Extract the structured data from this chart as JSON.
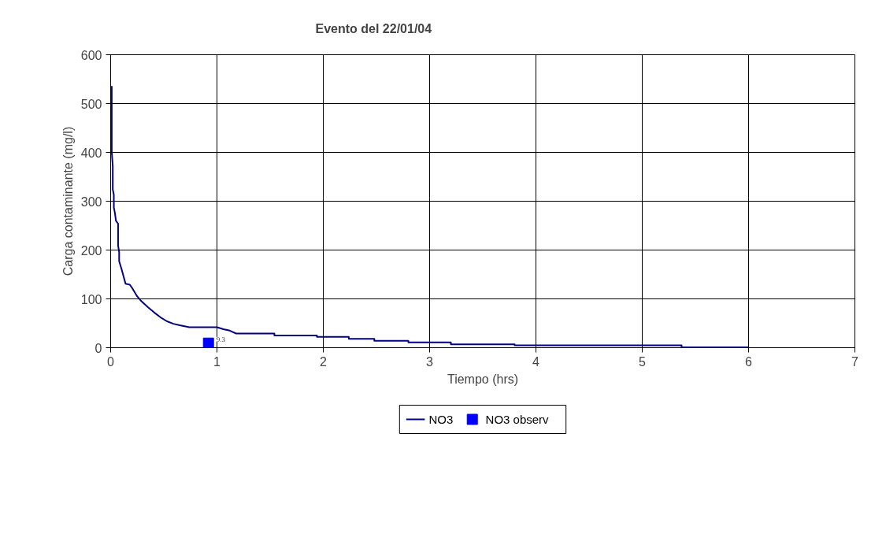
{
  "chart_data": {
    "type": "line",
    "title": "Evento del 22/01/04",
    "xlabel": "Tiempo (hrs)",
    "ylabel": "Carga contaminante (mg/l)",
    "xlim": [
      0,
      7
    ],
    "xticks": [
      0,
      1,
      2,
      3,
      4,
      5,
      6,
      7
    ],
    "ylim": [
      0,
      600
    ],
    "yticks": [
      0,
      100,
      200,
      300,
      400,
      500,
      600
    ],
    "grid": true,
    "legend": "bottom",
    "series": [
      {
        "name": "NO3",
        "color": "#000080",
        "marker": "none",
        "x": [
          0.01,
          0.01,
          0.02,
          0.02,
          0.03,
          0.03,
          0.04,
          0.05,
          0.07,
          0.07,
          0.08,
          0.08,
          0.1,
          0.12,
          0.14,
          0.18,
          0.2,
          0.25,
          0.29,
          0.35,
          0.41,
          0.47,
          0.53,
          0.59,
          0.65,
          0.74,
          1.0,
          1.06,
          1.12,
          1.18,
          1.54,
          1.54,
          1.94,
          1.94,
          2.24,
          2.24,
          2.48,
          2.48,
          2.8,
          2.8,
          3.2,
          3.2,
          3.8,
          3.8,
          5.37,
          5.37,
          6
        ],
        "values": [
          536,
          402,
          372,
          324,
          313,
          287,
          276,
          260,
          254,
          209,
          196,
          177,
          163,
          147,
          131,
          129,
          123,
          105,
          95,
          83,
          72,
          62,
          54,
          49,
          46,
          42,
          42,
          38,
          35,
          29,
          29,
          25,
          25,
          22,
          22,
          18,
          18,
          14,
          14,
          11,
          11,
          7,
          7,
          5,
          5,
          1,
          1
        ]
      },
      {
        "name": "NO3 observ",
        "type": "scatter",
        "color": "#0000ff",
        "marker": "square",
        "x": [
          0.92
        ],
        "values": [
          9.3
        ],
        "value_labels": [
          "9.3"
        ]
      }
    ]
  }
}
